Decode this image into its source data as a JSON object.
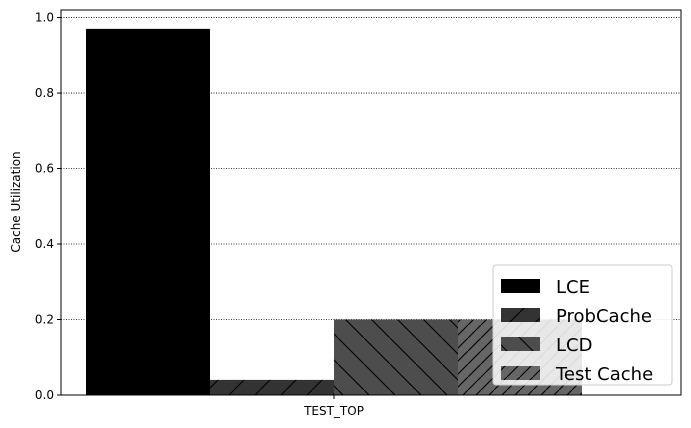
{
  "chart_data": {
    "type": "bar",
    "categories": [
      "TEST_TOP"
    ],
    "series": [
      {
        "name": "LCE",
        "values": [
          0.97
        ],
        "color": "#000000",
        "hatch": "none"
      },
      {
        "name": "ProbCache",
        "values": [
          0.04
        ],
        "color": "#333333",
        "hatch": "forward-diagonal"
      },
      {
        "name": "LCD",
        "values": [
          0.2
        ],
        "color": "#4d4d4d",
        "hatch": "back-diagonal"
      },
      {
        "name": "Test Cache",
        "values": [
          0.2
        ],
        "color": "#666666",
        "hatch": "forward-diagonal-dense"
      }
    ],
    "xlabel": "",
    "ylabel": "Cache Utilization",
    "ylim": [
      0.0,
      1.02
    ],
    "yticks": [
      "0.0",
      "0.2",
      "0.4",
      "0.6",
      "0.8",
      "1.0"
    ],
    "grid": "horizontal dotted",
    "legend_position": "lower-right"
  }
}
